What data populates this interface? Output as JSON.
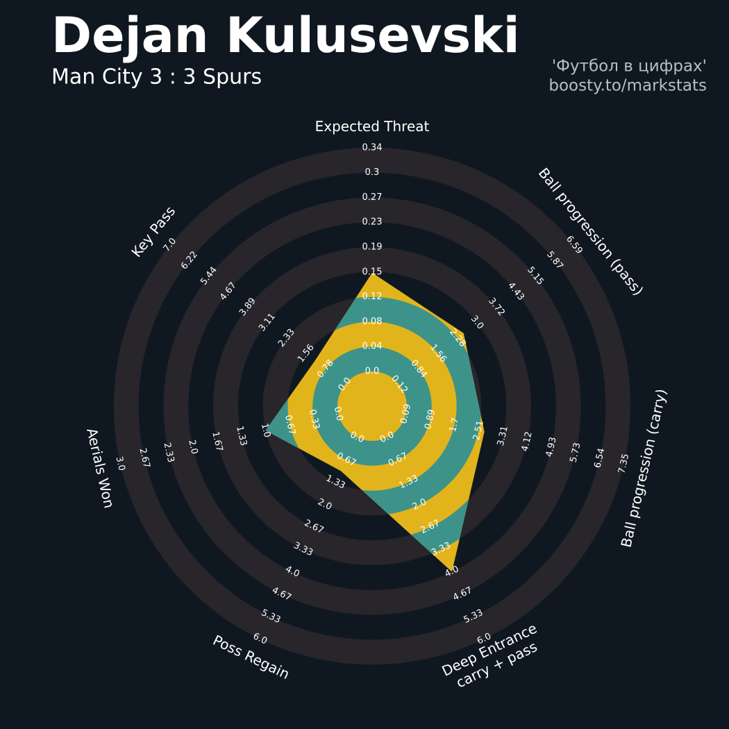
{
  "chart_data": {
    "type": "radar",
    "title": "Dejan Kulusevski",
    "subtitle": "Man City 3 : 3 Spurs",
    "credits": [
      "'Футбол в цифрах'",
      "boosty.to/markstats"
    ],
    "categories": [
      "Expected Threat",
      "Ball progression (pass)",
      "Ball progression (carry)",
      "Deep Entrance\ncarry + pass",
      "Poss Regain",
      "Aerials Won",
      "Key Pass"
    ],
    "axes_ticks": [
      [
        {
          "value": 0,
          "label": "0.0"
        },
        0.04,
        0.08,
        0.12,
        0.15,
        0.19,
        0.23,
        0.27,
        0.3,
        0.34
      ],
      [
        0.12,
        0.84,
        1.56,
        2.28,
        {
          "value": 3,
          "label": "3.0"
        },
        3.72,
        4.43,
        5.15,
        5.87,
        6.59
      ],
      [
        0.09,
        0.89,
        1.7,
        2.51,
        3.31,
        4.12,
        4.93,
        5.73,
        6.54,
        7.35
      ],
      [
        {
          "value": 0,
          "label": "0.0"
        },
        0.67,
        1.33,
        {
          "value": 2,
          "label": "2.0"
        },
        2.67,
        3.33,
        {
          "value": 4,
          "label": "4.0"
        },
        4.67,
        5.33,
        {
          "value": 6,
          "label": "6.0"
        }
      ],
      [
        {
          "value": 0,
          "label": "0.0"
        },
        0.67,
        1.33,
        {
          "value": 2,
          "label": "2.0"
        },
        2.67,
        3.33,
        {
          "value": 4,
          "label": "4.0"
        },
        4.67,
        5.33,
        {
          "value": 6,
          "label": "6.0"
        }
      ],
      [
        {
          "value": 0,
          "label": "0.0"
        },
        0.33,
        0.67,
        {
          "value": 1,
          "label": "1.0"
        },
        1.33,
        1.67,
        {
          "value": 2,
          "label": "2.0"
        },
        2.33,
        2.67,
        {
          "value": 3,
          "label": "3.0"
        }
      ],
      [
        {
          "value": 0,
          "label": "0.0"
        },
        0.78,
        1.56,
        2.33,
        3.11,
        3.89,
        4.67,
        5.44,
        6.22,
        {
          "value": 7,
          "label": "7.0"
        }
      ]
    ],
    "values": [
      0.15,
      2.5,
      2.7,
      4,
      1,
      1,
      1.2
    ],
    "fill_colors": [
      "#e2b41c",
      "#3d938a"
    ],
    "ring_color": "#28252b"
  }
}
